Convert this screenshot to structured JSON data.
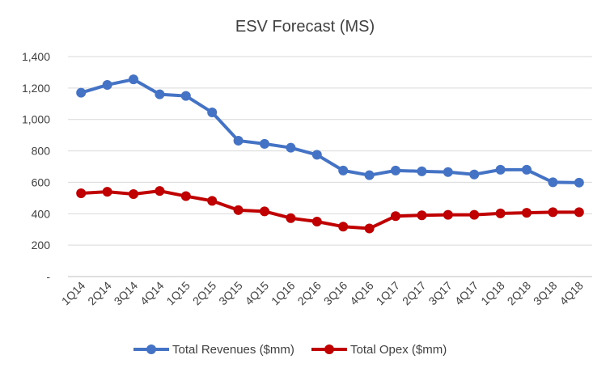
{
  "chart_data": {
    "type": "line",
    "title": "ESV Forecast (MS)",
    "xlabel": "",
    "ylabel": "",
    "categories": [
      "1Q14",
      "2Q14",
      "3Q14",
      "4Q14",
      "1Q15",
      "2Q15",
      "3Q15",
      "4Q15",
      "1Q16",
      "2Q16",
      "3Q16",
      "4Q16",
      "1Q17",
      "2Q17",
      "3Q17",
      "4Q17",
      "1Q18",
      "2Q18",
      "3Q18",
      "4Q18"
    ],
    "y_ticks": [
      "-",
      "200",
      "400",
      "600",
      "800",
      "1,000",
      "1,200",
      "1,400"
    ],
    "ylim": [
      0,
      1400
    ],
    "grid": true,
    "legend_position": "bottom",
    "series": [
      {
        "name": "Total Revenues ($mm)",
        "color": "#4472C4",
        "values": [
          1170,
          1220,
          1255,
          1160,
          1150,
          1045,
          865,
          845,
          820,
          775,
          675,
          645,
          675,
          670,
          665,
          650,
          680,
          680,
          600,
          598
        ]
      },
      {
        "name": "Total Opex ($mm)",
        "color": "#C00000",
        "values": [
          530,
          540,
          525,
          545,
          512,
          482,
          423,
          415,
          372,
          350,
          318,
          306,
          385,
          390,
          393,
          393,
          402,
          406,
          410,
          410
        ]
      }
    ]
  }
}
